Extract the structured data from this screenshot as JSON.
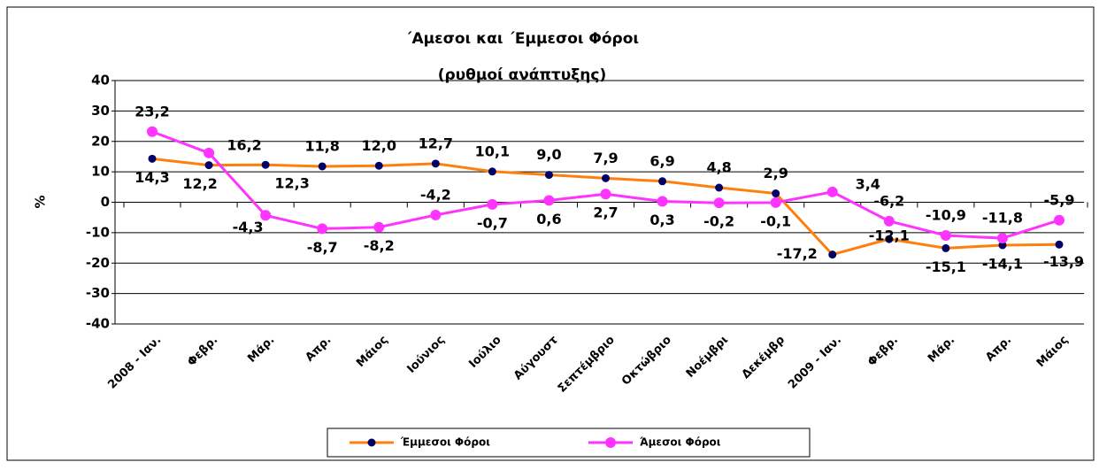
{
  "chart_data": {
    "type": "line",
    "title": [
      "΄Αμεσοι και ΄Εμμεσοι Φόροι",
      "(ρυθμοί ανάπτυξης)"
    ],
    "ylabel": "%",
    "categories": [
      "2008 - Ιαν.",
      "Φεβρ.",
      "Μάρ.",
      "Απρ.",
      "Μάιος",
      "Ιούνιος",
      "Ιούλιο",
      "Αύγουστ",
      "Σεπτέμβριο",
      "Οκτώβριο",
      "Νοέμβρι",
      "Δεκέμβρ",
      "2009 - Ιαν.",
      "Φεβρ.",
      "Μάρ.",
      "Απρ.",
      "Μάιος"
    ],
    "series": [
      {
        "name": "Έμμεσοι Φόροι",
        "color": "#ff7f0e",
        "marker_color": "#000066",
        "values": [
          14.3,
          12.2,
          12.3,
          11.8,
          12.0,
          12.7,
          10.1,
          9.0,
          7.9,
          6.9,
          4.8,
          2.9,
          -17.2,
          -12.1,
          -15.1,
          -14.1,
          -13.9
        ],
        "value_labels": [
          "14,3",
          "12,2",
          "12,3",
          "11,8",
          "12,0",
          "12,7",
          "10,1",
          "9,0",
          "7,9",
          "6,9",
          "4,8",
          "2,9",
          "-17,2",
          "-12,1",
          "-15,1",
          "-14,1",
          "-13,9"
        ]
      },
      {
        "name": "Άμεσοι Φόροι",
        "color": "#ff33ff",
        "marker_color": "#ff33ff",
        "values": [
          23.2,
          16.2,
          -4.3,
          -8.7,
          -8.2,
          -4.2,
          -0.7,
          0.6,
          2.7,
          0.3,
          -0.2,
          -0.1,
          3.4,
          -6.2,
          -10.9,
          -11.8,
          -5.9
        ],
        "value_labels": [
          "23,2",
          "16,2",
          "-4,3",
          "-8,7",
          "-8,2",
          "-4,2",
          "-0,7",
          "0,6",
          "2,7",
          "0,3",
          "-0,2",
          "-0,1",
          "3,4",
          "-6,2",
          "-10,9",
          "-11,8",
          "-5,9"
        ]
      }
    ],
    "ylim": [
      -40,
      40
    ],
    "yticks": [
      -40,
      -30,
      -20,
      -10,
      0,
      10,
      20,
      30,
      40
    ],
    "grid": true,
    "legend": "bottom"
  }
}
